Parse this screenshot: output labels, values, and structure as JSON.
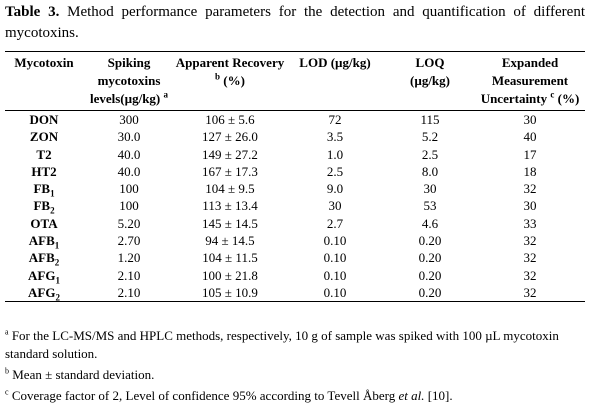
{
  "caption": {
    "label": "Table 3.",
    "text": " Method performance parameters for the detection and quantification of different mycotoxins."
  },
  "headers": {
    "mycotoxin": "Mycotoxin",
    "spiking": "Spiking mycotoxins levels(µg/kg)",
    "spiking_sup": "a",
    "recovery": "Apparent Recovery",
    "recovery_sup": "b",
    "recovery_unit": "(%)",
    "lod": "LOD (µg/kg)",
    "loq": "LOQ (µg/kg)",
    "uncertainty": "Expanded Measurement Uncertainty",
    "uncertainty_sup": "c",
    "uncertainty_unit": "(%)"
  },
  "rows": [
    {
      "name": "DON",
      "sub": "",
      "spiking": "300",
      "recovery": "106 ± 5.6",
      "lod": "72",
      "loq": "115",
      "unc": "30"
    },
    {
      "name": "ZON",
      "sub": "",
      "spiking": "30.0",
      "recovery": "127 ± 26.0",
      "lod": "3.5",
      "loq": "5.2",
      "unc": "40"
    },
    {
      "name": "T2",
      "sub": "",
      "spiking": "40.0",
      "recovery": "149 ± 27.2",
      "lod": "1.0",
      "loq": "2.5",
      "unc": "17"
    },
    {
      "name": "HT2",
      "sub": "",
      "spiking": "40.0",
      "recovery": "167 ± 17.3",
      "lod": "2.5",
      "loq": "8.0",
      "unc": "18"
    },
    {
      "name": "FB",
      "sub": "1",
      "spiking": "100",
      "recovery": "104 ± 9.5",
      "lod": "9.0",
      "loq": "30",
      "unc": "32"
    },
    {
      "name": "FB",
      "sub": "2",
      "spiking": "100",
      "recovery": "113 ± 13.4",
      "lod": "30",
      "loq": "53",
      "unc": "30"
    },
    {
      "name": "OTA",
      "sub": "",
      "spiking": "5.20",
      "recovery": "145 ± 14.5",
      "lod": "2.7",
      "loq": "4.6",
      "unc": "33"
    },
    {
      "name": "AFB",
      "sub": "1",
      "spiking": "2.70",
      "recovery": "94 ± 14.5",
      "lod": "0.10",
      "loq": "0.20",
      "unc": "32"
    },
    {
      "name": "AFB",
      "sub": "2",
      "spiking": "1.20",
      "recovery": "104 ± 11.5",
      "lod": "0.10",
      "loq": "0.20",
      "unc": "32"
    },
    {
      "name": "AFG",
      "sub": "1",
      "spiking": "2.10",
      "recovery": "100 ± 21.8",
      "lod": "0.10",
      "loq": "0.20",
      "unc": "32"
    },
    {
      "name": "AFG",
      "sub": "2",
      "spiking": "2.10",
      "recovery": "105 ± 10.9",
      "lod": "0.10",
      "loq": "0.20",
      "unc": "32"
    }
  ],
  "footnotes": [
    {
      "mark": "a",
      "text": " For the LC-MS/MS and HPLC methods, respectively, 10 g of sample was spiked with 100 µL mycotoxin standard solution."
    },
    {
      "mark": "b",
      "text": " Mean ± standard deviation."
    },
    {
      "mark": "c",
      "text": " Coverage factor of 2, Level of confidence 95% according to Tevell Åberg ",
      "italic": "et al.",
      "tail": " [10]."
    }
  ]
}
